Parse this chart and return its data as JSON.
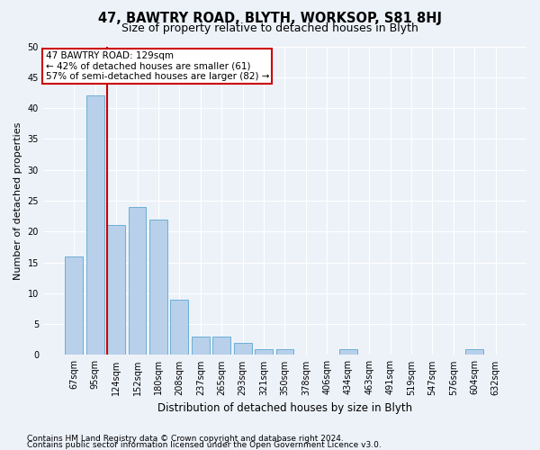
{
  "title": "47, BAWTRY ROAD, BLYTH, WORKSOP, S81 8HJ",
  "subtitle": "Size of property relative to detached houses in Blyth",
  "xlabel": "Distribution of detached houses by size in Blyth",
  "ylabel": "Number of detached properties",
  "categories": [
    "67sqm",
    "95sqm",
    "124sqm",
    "152sqm",
    "180sqm",
    "208sqm",
    "237sqm",
    "265sqm",
    "293sqm",
    "321sqm",
    "350sqm",
    "378sqm",
    "406sqm",
    "434sqm",
    "463sqm",
    "491sqm",
    "519sqm",
    "547sqm",
    "576sqm",
    "604sqm",
    "632sqm"
  ],
  "values": [
    16,
    42,
    21,
    24,
    22,
    9,
    3,
    3,
    2,
    1,
    1,
    0,
    0,
    1,
    0,
    0,
    0,
    0,
    0,
    1,
    0
  ],
  "bar_color": "#b8d0ea",
  "bar_edgecolor": "#6baed6",
  "ylim": [
    0,
    50
  ],
  "yticks": [
    0,
    5,
    10,
    15,
    20,
    25,
    30,
    35,
    40,
    45,
    50
  ],
  "annotation_line1": "47 BAWTRY ROAD: 129sqm",
  "annotation_line2": "← 42% of detached houses are smaller (61)",
  "annotation_line3": "57% of semi-detached houses are larger (82) →",
  "annotation_box_color": "#cc0000",
  "vline_color": "#cc0000",
  "footnote1": "Contains HM Land Registry data © Crown copyright and database right 2024.",
  "footnote2": "Contains public sector information licensed under the Open Government Licence v3.0.",
  "background_color": "#edf2f9",
  "plot_bg_color": "#edf2f9",
  "grid_color": "#ffffff",
  "title_fontsize": 10.5,
  "subtitle_fontsize": 9,
  "ylabel_fontsize": 8,
  "xlabel_fontsize": 8.5,
  "tick_fontsize": 7,
  "footnote_fontsize": 6.5,
  "annot_fontsize": 7.5
}
